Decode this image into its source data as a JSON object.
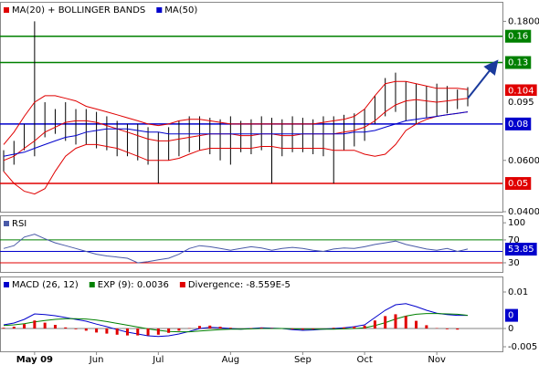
{
  "chart_data": [
    {
      "type": "range_bar",
      "log_scale": true,
      "ylim": [
        0.04,
        0.21
      ],
      "yticks": [
        {
          "value": 0.18,
          "label": "0.1800"
        },
        {
          "value": 0.06,
          "label": "0.0600"
        },
        {
          "value": 0.04,
          "label": "0.0400"
        }
      ],
      "bar_color": "#000000",
      "high": [
        0.065,
        0.07,
        0.08,
        0.18,
        0.095,
        0.09,
        0.095,
        0.09,
        0.09,
        0.088,
        0.085,
        0.082,
        0.08,
        0.08,
        0.078,
        0.075,
        0.078,
        0.082,
        0.085,
        0.085,
        0.084,
        0.083,
        0.085,
        0.082,
        0.083,
        0.085,
        0.084,
        0.083,
        0.085,
        0.084,
        0.083,
        0.085,
        0.085,
        0.086,
        0.087,
        0.09,
        0.1,
        0.115,
        0.12,
        0.112,
        0.11,
        0.108,
        0.11,
        0.108,
        0.105,
        0.107
      ],
      "low": [
        0.055,
        0.058,
        0.065,
        0.062,
        0.072,
        0.074,
        0.07,
        0.068,
        0.068,
        0.066,
        0.065,
        0.062,
        0.062,
        0.06,
        0.058,
        0.05,
        0.06,
        0.062,
        0.064,
        0.065,
        0.063,
        0.06,
        0.058,
        0.064,
        0.063,
        0.065,
        0.05,
        0.062,
        0.064,
        0.064,
        0.063,
        0.062,
        0.05,
        0.065,
        0.067,
        0.07,
        0.08,
        0.085,
        0.088,
        0.082,
        0.08,
        0.084,
        0.085,
        0.087,
        0.09,
        0.092
      ],
      "series": [
        {
          "name": "MA(20) + BOLLINGER BANDS",
          "color": "#e00000",
          "values": [
            0.06,
            0.062,
            0.066,
            0.07,
            0.075,
            0.078,
            0.081,
            0.082,
            0.082,
            0.081,
            0.079,
            0.077,
            0.075,
            0.073,
            0.071,
            0.07,
            0.07,
            0.071,
            0.072,
            0.073,
            0.074,
            0.074,
            0.074,
            0.073,
            0.073,
            0.074,
            0.074,
            0.073,
            0.073,
            0.074,
            0.074,
            0.074,
            0.074,
            0.075,
            0.076,
            0.078,
            0.082,
            0.088,
            0.093,
            0.096,
            0.097,
            0.096,
            0.095,
            0.096,
            0.097,
            0.098
          ]
        },
        {
          "name": "MA(50)",
          "color": "#0000cc",
          "values": [
            0.062,
            0.063,
            0.064,
            0.066,
            0.068,
            0.07,
            0.072,
            0.073,
            0.075,
            0.076,
            0.077,
            0.077,
            0.077,
            0.076,
            0.075,
            0.075,
            0.074,
            0.074,
            0.074,
            0.074,
            0.074,
            0.074,
            0.074,
            0.074,
            0.074,
            0.074,
            0.074,
            0.074,
            0.074,
            0.074,
            0.074,
            0.074,
            0.074,
            0.074,
            0.075,
            0.075,
            0.076,
            0.078,
            0.08,
            0.082,
            0.083,
            0.084,
            0.085,
            0.086,
            0.087,
            0.088
          ]
        }
      ],
      "bands": {
        "color": "#e00000",
        "upper": [
          0.068,
          0.075,
          0.085,
          0.095,
          0.1,
          0.1,
          0.098,
          0.096,
          0.092,
          0.09,
          0.088,
          0.086,
          0.084,
          0.082,
          0.08,
          0.079,
          0.08,
          0.082,
          0.083,
          0.083,
          0.082,
          0.081,
          0.08,
          0.08,
          0.08,
          0.08,
          0.08,
          0.08,
          0.08,
          0.08,
          0.08,
          0.081,
          0.082,
          0.083,
          0.085,
          0.09,
          0.1,
          0.11,
          0.112,
          0.112,
          0.11,
          0.108,
          0.106,
          0.106,
          0.106,
          0.105
        ],
        "lower": [
          0.055,
          0.05,
          0.047,
          0.046,
          0.048,
          0.055,
          0.062,
          0.066,
          0.068,
          0.068,
          0.067,
          0.066,
          0.064,
          0.062,
          0.06,
          0.06,
          0.06,
          0.061,
          0.063,
          0.065,
          0.066,
          0.066,
          0.066,
          0.066,
          0.066,
          0.067,
          0.067,
          0.066,
          0.066,
          0.066,
          0.066,
          0.066,
          0.065,
          0.065,
          0.065,
          0.063,
          0.062,
          0.063,
          0.068,
          0.076,
          0.08,
          0.083,
          0.085,
          0.086,
          0.087,
          0.088
        ]
      },
      "levels": [
        {
          "value": 0.16,
          "color": "#008000"
        },
        {
          "value": 0.13,
          "color": "#008000"
        },
        {
          "value": 0.08,
          "color": "#0000cc"
        },
        {
          "value": 0.05,
          "color": "#e00000"
        }
      ],
      "tags": [
        {
          "value": 0.104,
          "color": "#e00000"
        },
        {
          "value": 0.095,
          "color": "#000000"
        }
      ],
      "arrow_color": "#1a3a9c"
    },
    {
      "type": "line",
      "ylim": [
        14,
        113
      ],
      "yticks": [
        100,
        70,
        30
      ],
      "series": [
        {
          "name": "RSI",
          "color": "#4a5aa8",
          "values": [
            55,
            60,
            75,
            80,
            72,
            65,
            60,
            55,
            50,
            45,
            42,
            40,
            38,
            30,
            32,
            35,
            38,
            45,
            55,
            60,
            58,
            55,
            52,
            55,
            58,
            56,
            52,
            55,
            57,
            55,
            52,
            50,
            54,
            56,
            55,
            58,
            62,
            65,
            68,
            62,
            58,
            54,
            52,
            55,
            50,
            54
          ]
        }
      ],
      "levels": [
        {
          "value": 70,
          "color": "#008000"
        },
        {
          "value": 50,
          "color": "#0000cc"
        },
        {
          "value": 30,
          "color": "#e00000"
        }
      ],
      "tags": [
        {
          "value": 53.85,
          "color": "#0000cc"
        }
      ]
    },
    {
      "type": "macd",
      "ylim": [
        -0.00625,
        0.01425
      ],
      "yticks": [
        0.01,
        0,
        -0.005
      ],
      "categories": [
        null,
        null,
        null,
        "May 09",
        null,
        null,
        null,
        null,
        null,
        "Jun",
        null,
        null,
        null,
        null,
        null,
        "Jul",
        null,
        null,
        null,
        null,
        null,
        null,
        "Aug",
        null,
        null,
        null,
        null,
        null,
        null,
        "Sep",
        null,
        null,
        null,
        null,
        null,
        "Oct",
        null,
        null,
        null,
        null,
        null,
        null,
        "Nov",
        null,
        null,
        null
      ],
      "series": [
        {
          "name": "MACD (26, 12)",
          "color": "#0000cc",
          "values": [
            0.001,
            0.0015,
            0.0025,
            0.004,
            0.0038,
            0.0035,
            0.003,
            0.0025,
            0.002,
            0.0012,
            0.0005,
            -0.0003,
            -0.001,
            -0.0015,
            -0.002,
            -0.0022,
            -0.002,
            -0.0015,
            -0.0008,
            0,
            0.0003,
            0.0002,
            0,
            -0.0002,
            0,
            0.0002,
            0.0001,
            0,
            -0.0003,
            -0.0005,
            -0.0004,
            -0.0002,
            0,
            0.0002,
            0.0005,
            0.001,
            0.003,
            0.005,
            0.0065,
            0.0068,
            0.006,
            0.005,
            0.0042,
            0.0038,
            0.0036,
            0.0036
          ]
        },
        {
          "name": "EXP (9): 0.0036",
          "color": "#008000",
          "values": [
            0.0008,
            0.001,
            0.0013,
            0.0018,
            0.0022,
            0.0025,
            0.0027,
            0.0027,
            0.0026,
            0.0023,
            0.0019,
            0.0014,
            0.0009,
            0.0004,
            -0.0001,
            -0.0005,
            -0.0008,
            -0.0009,
            -0.0009,
            -0.0007,
            -0.0005,
            -0.0003,
            -0.0002,
            -0.0002,
            -0.0001,
            0,
            0,
            0,
            -0.0001,
            -0.0002,
            -0.0002,
            -0.0002,
            -0.0002,
            -0.0001,
            0,
            0.0002,
            0.0008,
            0.0016,
            0.0026,
            0.0034,
            0.0039,
            0.0041,
            0.0041,
            0.004,
            0.0039,
            0.0036
          ]
        },
        {
          "name": "Divergence: -8.559E-5",
          "color": "#e00000",
          "type": "bar",
          "values": [
            0.0002,
            0.0005,
            0.0012,
            0.0022,
            0.0016,
            0.001,
            0.0003,
            -0.0002,
            -0.0006,
            -0.0011,
            -0.0014,
            -0.0017,
            -0.0019,
            -0.0019,
            -0.0019,
            -0.0017,
            -0.0012,
            -0.0006,
            0.0001,
            0.0007,
            0.0008,
            0.0005,
            0.0002,
            0,
            0.0001,
            0.0002,
            0.0001,
            0,
            -0.0002,
            -0.0003,
            -0.0002,
            0,
            0.0002,
            0.0003,
            0.0005,
            0.0008,
            0.0022,
            0.0034,
            0.0039,
            0.0034,
            0.0021,
            0.0009,
            0.0001,
            -0.0002,
            -0.0003,
            0
          ]
        }
      ],
      "levels": [
        {
          "value": 0,
          "color": "#808080"
        }
      ],
      "tags": [
        {
          "value": 0.0036,
          "label": "0",
          "color": "#0000cc"
        }
      ]
    }
  ]
}
